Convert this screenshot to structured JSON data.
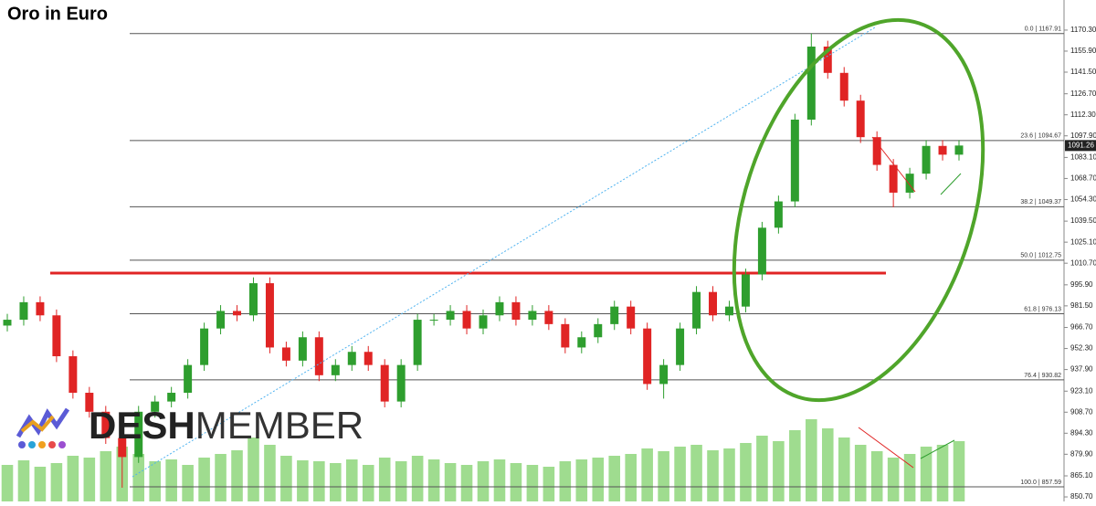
{
  "chart_data": {
    "type": "candlestick",
    "title": "Oro in Euro",
    "logo": {
      "bold": "DESH",
      "light": "MEMBER"
    },
    "ylim": [
      847.6,
      1190.9
    ],
    "yticks": [
      {
        "value": 850.7,
        "label": "850.70"
      },
      {
        "value": 865.1,
        "label": "865.10"
      },
      {
        "value": 879.9,
        "label": "879.90"
      },
      {
        "value": 894.3,
        "label": "894.30"
      },
      {
        "value": 908.7,
        "label": "908.70"
      },
      {
        "value": 923.1,
        "label": "923.10"
      },
      {
        "value": 937.9,
        "label": "937.90"
      },
      {
        "value": 952.3,
        "label": "952.30"
      },
      {
        "value": 966.7,
        "label": "966.70"
      },
      {
        "value": 981.5,
        "label": "981.50"
      },
      {
        "value": 995.9,
        "label": "995.90"
      },
      {
        "value": 1010.7,
        "label": "1010.70"
      },
      {
        "value": 1025.1,
        "label": "1025.10"
      },
      {
        "value": 1039.5,
        "label": "1039.50"
      },
      {
        "value": 1054.3,
        "label": "1054.30"
      },
      {
        "value": 1068.7,
        "label": "1068.70"
      },
      {
        "value": 1083.1,
        "label": "1083.10"
      },
      {
        "value": 1097.9,
        "label": "1097.90"
      },
      {
        "value": 1112.3,
        "label": "1112.30"
      },
      {
        "value": 1126.7,
        "label": "1126.70"
      },
      {
        "value": 1141.5,
        "label": "1141.50"
      },
      {
        "value": 1155.9,
        "label": "1155.90"
      },
      {
        "value": 1170.3,
        "label": "1170.30"
      }
    ],
    "fib_levels": [
      {
        "value": 1167.91,
        "label": "0.0 | 1167.91"
      },
      {
        "value": 1094.67,
        "label": "23.6 | 1094.67"
      },
      {
        "value": 1049.37,
        "label": "38.2 | 1049.37"
      },
      {
        "value": 1012.75,
        "label": "50.0 | 1012.75"
      },
      {
        "value": 976.13,
        "label": "61.8 | 976.13"
      },
      {
        "value": 930.82,
        "label": "76.4 | 930.82"
      },
      {
        "value": 857.59,
        "label": "100.0 | 857.59"
      }
    ],
    "last_price": {
      "value": 1091.26,
      "label": "1091.26"
    },
    "resistance": 1003.9,
    "up_color": "#2e9e2e",
    "down_color": "#e02424",
    "volume_color": "#9fdc8f",
    "open": [
      968,
      972,
      984,
      975,
      947,
      922,
      909,
      891,
      878,
      909,
      916,
      922,
      941,
      966,
      978,
      975,
      997,
      953,
      944,
      960,
      934,
      941,
      950,
      941,
      916,
      941,
      972,
      972,
      978,
      966,
      975,
      984,
      972,
      978,
      969,
      953,
      960,
      969,
      981,
      966,
      928,
      941,
      966,
      991,
      975,
      981,
      1003,
      1035,
      1053,
      1109,
      1159,
      1141,
      1122,
      1097,
      1078,
      1059,
      1072,
      1091,
      1085
    ],
    "high": [
      976,
      988,
      988,
      979,
      951,
      926,
      913,
      895,
      913,
      920,
      926,
      945,
      970,
      982,
      982,
      1001,
      1001,
      957,
      964,
      964,
      945,
      954,
      954,
      945,
      945,
      976,
      976,
      982,
      982,
      979,
      988,
      988,
      982,
      982,
      973,
      964,
      973,
      985,
      985,
      970,
      945,
      970,
      995,
      995,
      985,
      1007,
      1039,
      1057,
      1113,
      1168,
      1163,
      1145,
      1126,
      1101,
      1082,
      1076,
      1095,
      1095,
      1095
    ],
    "low": [
      964,
      968,
      971,
      943,
      918,
      905,
      887,
      857,
      874,
      905,
      912,
      918,
      937,
      962,
      971,
      971,
      949,
      940,
      940,
      930,
      930,
      937,
      937,
      912,
      912,
      937,
      968,
      968,
      962,
      962,
      971,
      968,
      968,
      965,
      949,
      949,
      956,
      965,
      962,
      924,
      918,
      937,
      962,
      971,
      971,
      977,
      999,
      1031,
      1049,
      1105,
      1137,
      1118,
      1093,
      1074,
      1049,
      1055,
      1068,
      1081,
      1081
    ],
    "close": [
      972,
      984,
      975,
      947,
      922,
      909,
      891,
      878,
      909,
      916,
      922,
      941,
      966,
      978,
      975,
      997,
      953,
      944,
      960,
      934,
      941,
      950,
      941,
      916,
      941,
      972,
      972,
      978,
      966,
      975,
      984,
      972,
      978,
      969,
      953,
      960,
      969,
      981,
      966,
      928,
      941,
      966,
      991,
      975,
      981,
      1003,
      1035,
      1053,
      1109,
      1159,
      1141,
      1122,
      1097,
      1078,
      1059,
      1072,
      1091,
      1085,
      1091.26
    ],
    "volume": [
      40,
      45,
      38,
      42,
      50,
      48,
      55,
      60,
      52,
      44,
      46,
      40,
      48,
      52,
      56,
      70,
      62,
      50,
      45,
      44,
      42,
      46,
      40,
      48,
      44,
      50,
      46,
      42,
      40,
      44,
      46,
      42,
      40,
      38,
      44,
      46,
      48,
      50,
      52,
      58,
      55,
      60,
      62,
      56,
      58,
      64,
      72,
      66,
      78,
      90,
      80,
      70,
      62,
      55,
      48,
      52,
      60,
      62,
      66
    ]
  }
}
